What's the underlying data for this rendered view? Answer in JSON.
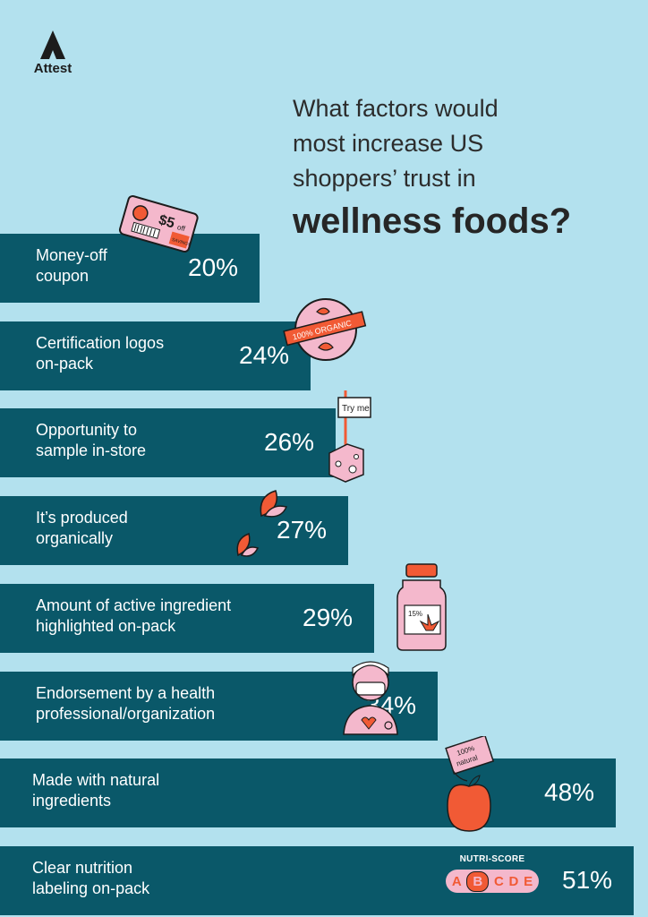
{
  "logo": {
    "text": "Attest",
    "icon": "attest-triangle-icon"
  },
  "title": {
    "lines": [
      "What factors would",
      "most increase US",
      "shoppers’ trust in"
    ],
    "emphasis": "wellness foods?"
  },
  "icons": {
    "coupon": {
      "price": "$5",
      "off": "off",
      "tag": "SAVINGS"
    },
    "badge": {
      "text": "100% ORGANIC"
    },
    "sample": {
      "text": "Try me"
    },
    "bottle": {
      "text": "15%"
    },
    "apple": {
      "text_top": "100%",
      "text_bottom": "natural"
    },
    "nutri": {
      "title": "NUTRI-SCORE",
      "letters": [
        "A",
        "B",
        "C",
        "D",
        "E"
      ]
    }
  },
  "colors": {
    "background": "#b3e1ee",
    "bar": "#0a5869",
    "accent": "#f15a35",
    "pink": "#f4b8cc"
  },
  "chart_data": {
    "type": "bar",
    "orientation": "horizontal",
    "unit": "%",
    "categories": [
      "Money-off\ncoupon",
      "Certification logos\non-pack",
      "Opportunity to\nsample in-store",
      "It’s produced\norganically",
      "Amount of active ingredient\nhighlighted on-pack",
      "Endorsement by a health\nprofessional/organization",
      "Made with natural\ningredients",
      "Clear nutrition\nlabeling on-pack"
    ],
    "values": [
      20,
      24,
      26,
      27,
      29,
      34,
      48,
      51
    ],
    "value_labels": [
      "20%",
      "24%",
      "26%",
      "27%",
      "29%",
      "34%",
      "48%",
      "51%"
    ]
  }
}
